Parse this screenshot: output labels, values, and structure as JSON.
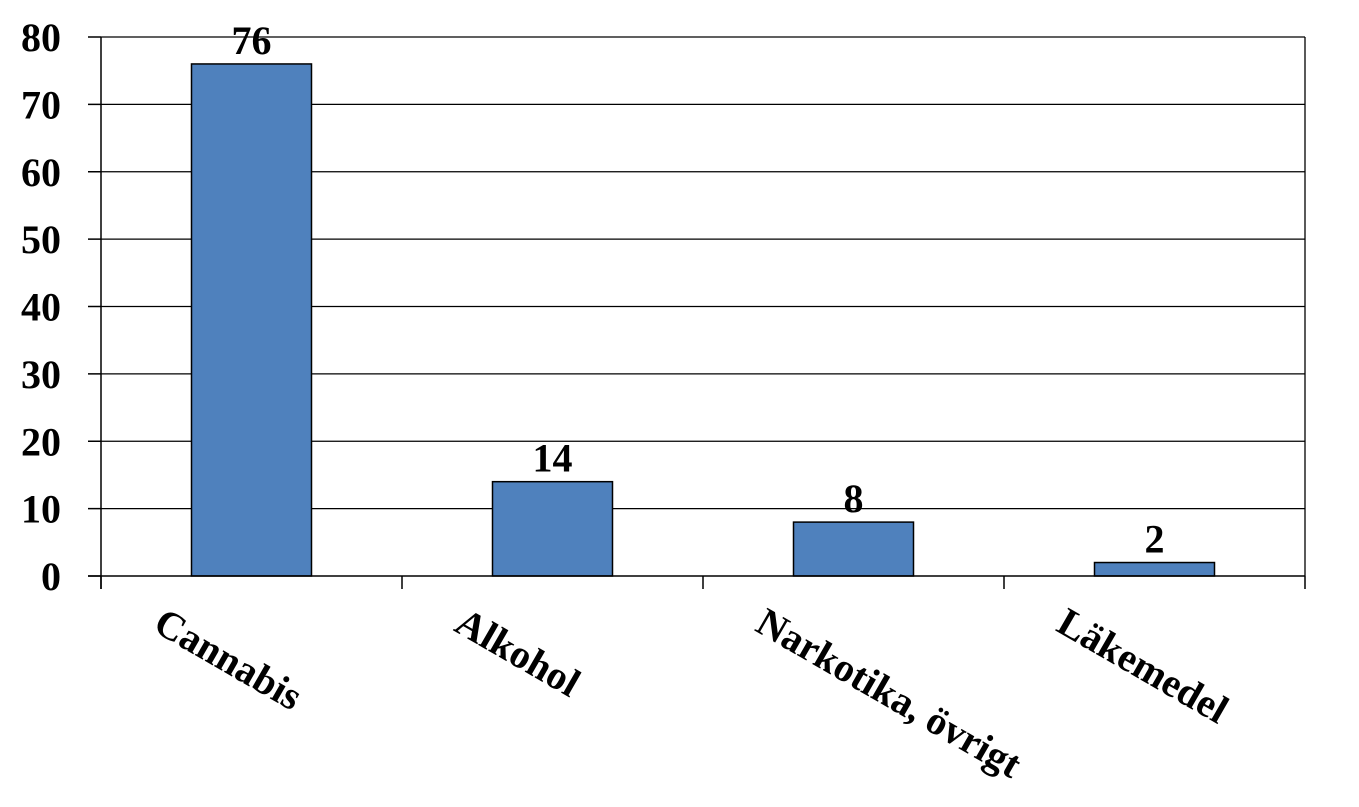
{
  "chart_data": {
    "type": "bar",
    "categories": [
      "Cannabis",
      "Alkohol",
      "Narkotika, övrigt",
      "Läkemedel"
    ],
    "series": [
      {
        "values": [
          76,
          14,
          8,
          2
        ]
      }
    ],
    "data_labels": [
      "76",
      "14",
      "8",
      "2"
    ],
    "title": "",
    "xlabel": "",
    "ylabel": "",
    "ylim": [
      0,
      80
    ],
    "yticks": [
      0,
      10,
      20,
      30,
      40,
      50,
      60,
      70,
      80
    ],
    "ytick_labels": [
      "0",
      "10",
      "20",
      "30",
      "40",
      "50",
      "60",
      "70",
      "80"
    ],
    "grid": true,
    "legend": "none",
    "bar_color": "#4F81BD",
    "bar_edge_color": "#000000",
    "grid_color": "#000000",
    "category_label_rotation_deg": 30
  }
}
